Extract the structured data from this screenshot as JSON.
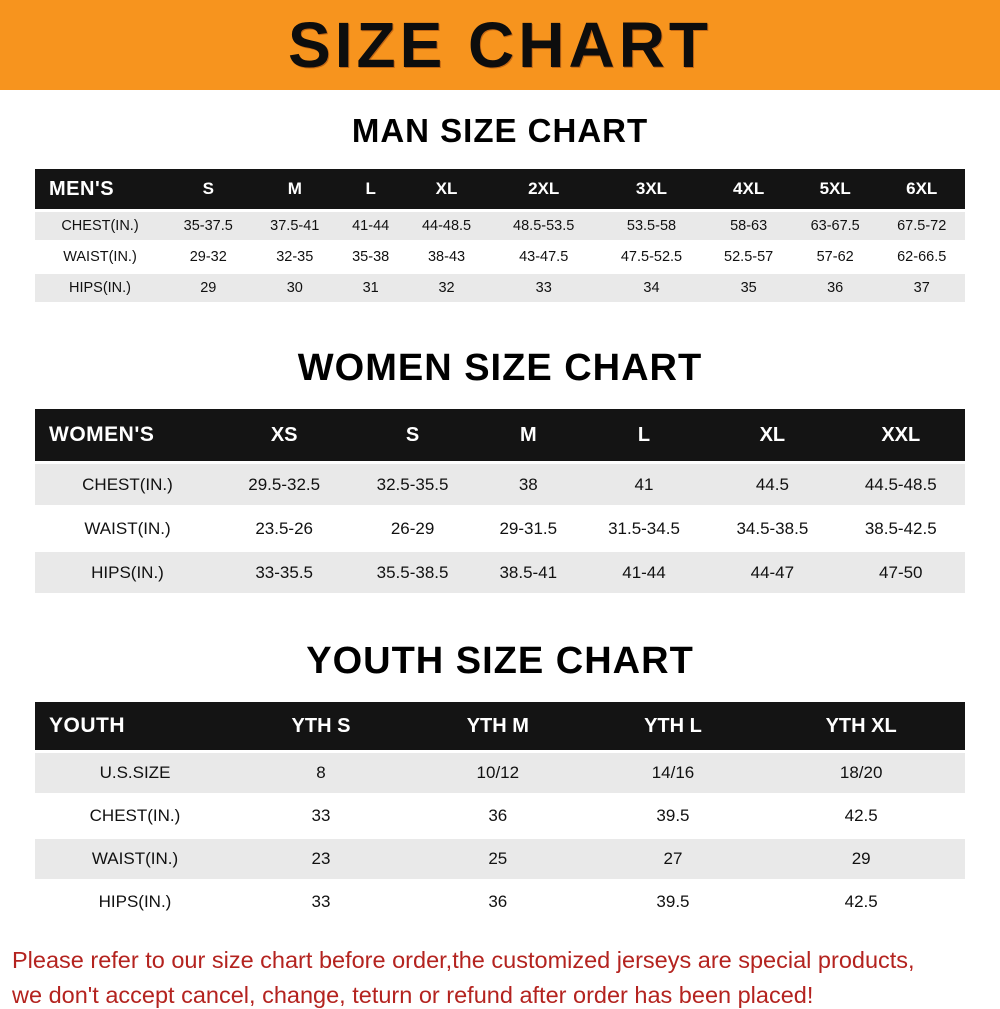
{
  "banner": {
    "title": "SIZE CHART"
  },
  "colors": {
    "accent": "#f7941e",
    "header-bg": "#141414",
    "row-gray": "#e9e9e9",
    "footer-red": "#b4231f"
  },
  "sections": {
    "men": {
      "heading": "MAN SIZE CHART",
      "table": {
        "header": [
          "MEN'S",
          "S",
          "M",
          "L",
          "XL",
          "2XL",
          "3XL",
          "4XL",
          "5XL",
          "6XL"
        ],
        "rows": [
          [
            "CHEST(IN.)",
            "35-37.5",
            "37.5-41",
            "41-44",
            "44-48.5",
            "48.5-53.5",
            "53.5-58",
            "58-63",
            "63-67.5",
            "67.5-72"
          ],
          [
            "WAIST(IN.)",
            "29-32",
            "32-35",
            "35-38",
            "38-43",
            "43-47.5",
            "47.5-52.5",
            "52.5-57",
            "57-62",
            "62-66.5"
          ],
          [
            "HIPS(IN.)",
            "29",
            "30",
            "31",
            "32",
            "33",
            "34",
            "35",
            "36",
            "37"
          ]
        ]
      }
    },
    "women": {
      "heading": "WOMEN SIZE CHART",
      "table": {
        "header": [
          "WOMEN'S",
          "XS",
          "S",
          "M",
          "L",
          "XL",
          "XXL"
        ],
        "rows": [
          [
            "CHEST(IN.)",
            "29.5-32.5",
            "32.5-35.5",
            "38",
            "41",
            "44.5",
            "44.5-48.5"
          ],
          [
            "WAIST(IN.)",
            "23.5-26",
            "26-29",
            "29-31.5",
            "31.5-34.5",
            "34.5-38.5",
            "38.5-42.5"
          ],
          [
            "HIPS(IN.)",
            "33-35.5",
            "35.5-38.5",
            "38.5-41",
            "41-44",
            "44-47",
            "47-50"
          ]
        ]
      }
    },
    "youth": {
      "heading": "YOUTH SIZE CHART",
      "table": {
        "header": [
          "YOUTH",
          "YTH S",
          "YTH M",
          "YTH L",
          "YTH XL"
        ],
        "rows": [
          [
            "U.S.SIZE",
            "8",
            "10/12",
            "14/16",
            "18/20"
          ],
          [
            "CHEST(IN.)",
            "33",
            "36",
            "39.5",
            "42.5"
          ],
          [
            "WAIST(IN.)",
            "23",
            "25",
            "27",
            "29"
          ],
          [
            "HIPS(IN.)",
            "33",
            "36",
            "39.5",
            "42.5"
          ]
        ]
      }
    }
  },
  "footer": {
    "line1": "Please refer to our size chart before order,the customized jerseys are special products,",
    "line2": "we don't accept cancel, change, teturn or refund after order has been placed!"
  }
}
